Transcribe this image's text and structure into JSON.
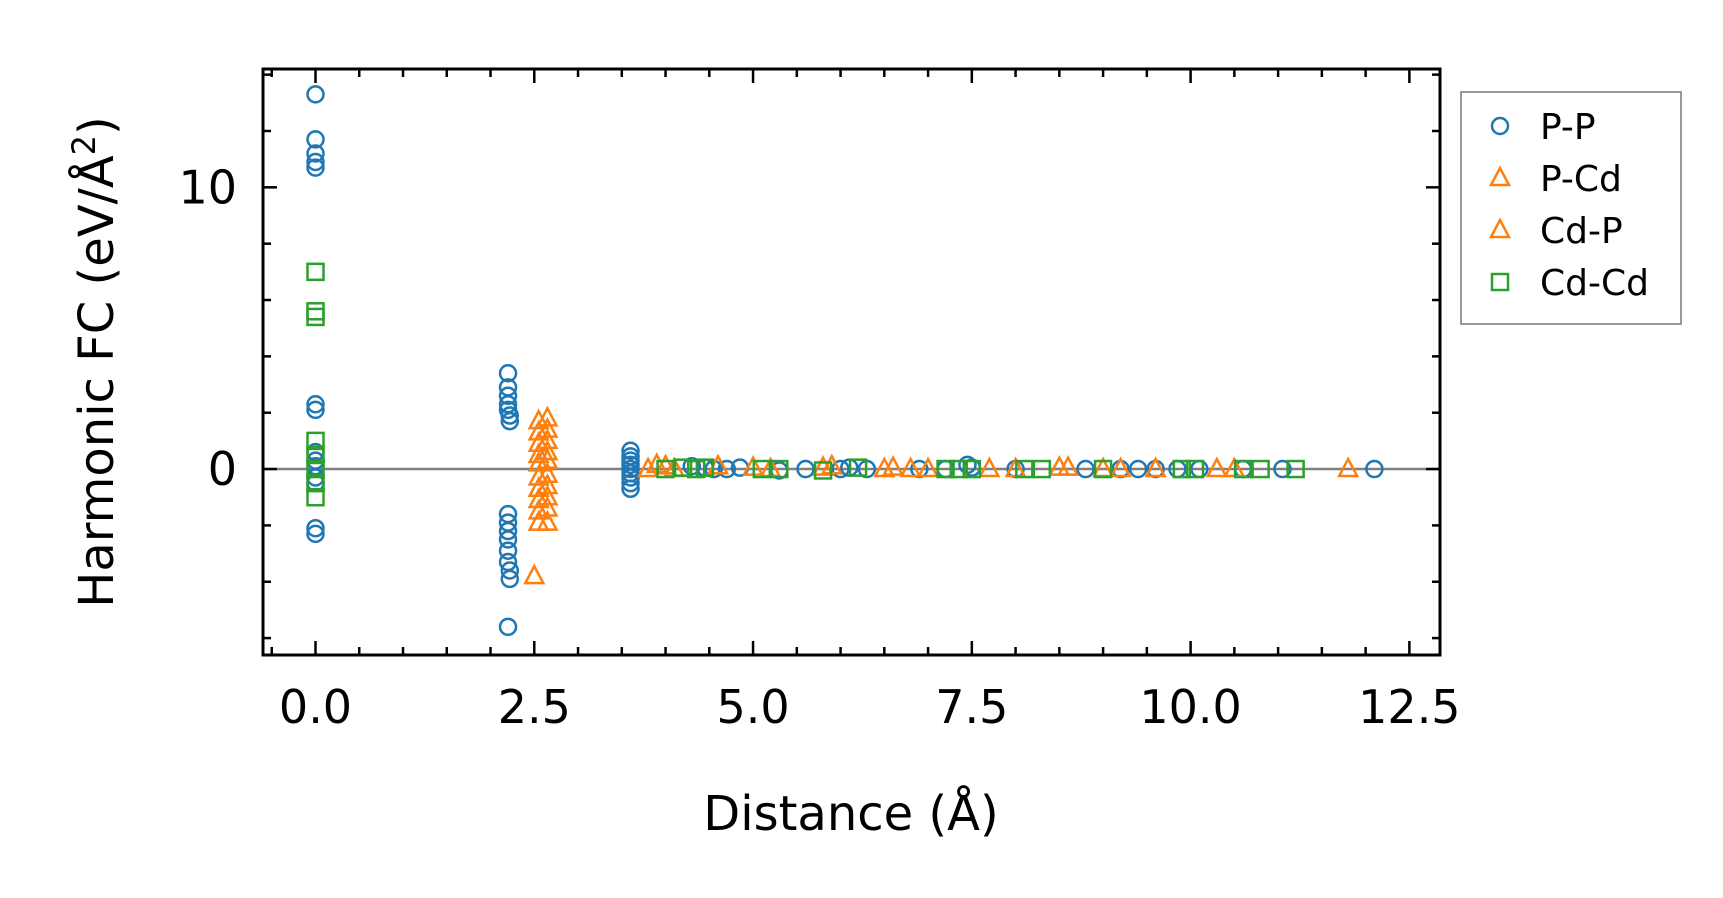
{
  "chart_data": {
    "type": "scatter",
    "title": "",
    "xlabel": "Distance (Å)",
    "ylabel": "Harmonic FC (eV/Å²)",
    "ylabel_parts": {
      "base": "Harmonic FC (eV/Å",
      "sup": "2",
      "close": ")"
    },
    "xlim": [
      -0.6,
      12.85
    ],
    "ylim": [
      -6.6,
      14.2
    ],
    "xticks": [
      0.0,
      2.5,
      5.0,
      7.5,
      10.0,
      12.5
    ],
    "xtick_labels": [
      "0.0",
      "2.5",
      "5.0",
      "7.5",
      "10.0",
      "12.5"
    ],
    "yticks": [
      0,
      10
    ],
    "ytick_labels": [
      "0",
      "10"
    ],
    "zero_line": true,
    "legend_position": "outside-right-top",
    "series": [
      {
        "name": "P-P",
        "marker": "circle",
        "color": "#1f77b4",
        "points": [
          [
            0,
            13.3
          ],
          [
            0,
            11.7
          ],
          [
            0,
            11.2
          ],
          [
            0,
            10.9
          ],
          [
            0,
            10.7
          ],
          [
            0,
            2.3
          ],
          [
            0,
            2.1
          ],
          [
            0,
            0.6
          ],
          [
            0,
            0.3
          ],
          [
            0,
            0.1
          ],
          [
            0,
            -0.3
          ],
          [
            0,
            -0.5
          ],
          [
            0,
            -2.1
          ],
          [
            0,
            -2.3
          ],
          [
            2.2,
            3.4
          ],
          [
            2.2,
            2.9
          ],
          [
            2.2,
            2.6
          ],
          [
            2.2,
            2.3
          ],
          [
            2.2,
            2.1
          ],
          [
            2.22,
            1.9
          ],
          [
            2.22,
            1.7
          ],
          [
            2.2,
            -1.6
          ],
          [
            2.2,
            -1.9
          ],
          [
            2.2,
            -2.2
          ],
          [
            2.2,
            -2.5
          ],
          [
            2.2,
            -2.9
          ],
          [
            2.2,
            -3.3
          ],
          [
            2.22,
            -3.6
          ],
          [
            2.22,
            -3.9
          ],
          [
            2.2,
            -5.6
          ],
          [
            3.6,
            0.65
          ],
          [
            3.6,
            0.45
          ],
          [
            3.6,
            0.3
          ],
          [
            3.6,
            0.15
          ],
          [
            3.6,
            0.0
          ],
          [
            3.6,
            -0.15
          ],
          [
            3.6,
            -0.3
          ],
          [
            3.6,
            -0.5
          ],
          [
            3.6,
            -0.7
          ],
          [
            4.3,
            0.1
          ],
          [
            4.45,
            0.05
          ],
          [
            4.55,
            0.0
          ],
          [
            4.7,
            0.0
          ],
          [
            4.85,
            0.05
          ],
          [
            5.3,
            -0.05
          ],
          [
            5.6,
            0.0
          ],
          [
            6.0,
            0.0
          ],
          [
            6.1,
            0.05
          ],
          [
            6.3,
            0.0
          ],
          [
            6.9,
            0.0
          ],
          [
            7.2,
            0.0
          ],
          [
            7.45,
            0.15
          ],
          [
            7.5,
            0.05
          ],
          [
            8.0,
            0.0
          ],
          [
            8.8,
            0.0
          ],
          [
            9.2,
            0.0
          ],
          [
            9.4,
            0.0
          ],
          [
            9.6,
            0.0
          ],
          [
            9.85,
            0.0
          ],
          [
            10.1,
            0.0
          ],
          [
            10.6,
            0.0
          ],
          [
            11.05,
            0.0
          ],
          [
            12.1,
            0.0
          ]
        ]
      },
      {
        "name": "P-Cd",
        "marker": "triangle",
        "color": "#ff7f0e",
        "points": [
          [
            2.55,
            1.7
          ],
          [
            2.55,
            1.3
          ],
          [
            2.55,
            0.9
          ],
          [
            2.55,
            0.5
          ],
          [
            2.55,
            0.2
          ],
          [
            2.55,
            -0.3
          ],
          [
            2.55,
            -0.7
          ],
          [
            2.55,
            -1.1
          ],
          [
            2.55,
            -1.5
          ],
          [
            2.55,
            -1.9
          ],
          [
            2.5,
            -3.8
          ],
          [
            4.0,
            0.1
          ],
          [
            5.0,
            0.05
          ],
          [
            5.8,
            0.05
          ],
          [
            6.5,
            0.0
          ],
          [
            7.0,
            0.0
          ],
          [
            8.0,
            0.0
          ],
          [
            8.6,
            0.05
          ],
          [
            9.0,
            0.0
          ],
          [
            9.6,
            0.0
          ],
          [
            10.3,
            0.0
          ],
          [
            11.8,
            0.0
          ]
        ]
      },
      {
        "name": "Cd-P",
        "marker": "triangle",
        "color": "#ff7f0e",
        "points": [
          [
            2.65,
            1.8
          ],
          [
            2.65,
            1.4
          ],
          [
            2.65,
            1.0
          ],
          [
            2.65,
            0.6
          ],
          [
            2.65,
            0.3
          ],
          [
            2.65,
            -0.2
          ],
          [
            2.65,
            -0.6
          ],
          [
            2.65,
            -1.0
          ],
          [
            2.65,
            -1.4
          ],
          [
            2.65,
            -1.9
          ],
          [
            3.8,
            0.0
          ],
          [
            3.9,
            0.15
          ],
          [
            4.1,
            0.0
          ],
          [
            4.6,
            0.1
          ],
          [
            5.2,
            0.0
          ],
          [
            5.9,
            0.1
          ],
          [
            6.6,
            0.05
          ],
          [
            6.8,
            0.0
          ],
          [
            7.7,
            0.0
          ],
          [
            8.5,
            0.05
          ],
          [
            9.2,
            0.0
          ],
          [
            10.5,
            0.0
          ]
        ]
      },
      {
        "name": "Cd-Cd",
        "marker": "square",
        "color": "#2ca02c",
        "points": [
          [
            0,
            7.0
          ],
          [
            0,
            5.6
          ],
          [
            0,
            5.4
          ],
          [
            0,
            1.0
          ],
          [
            0,
            0.5
          ],
          [
            0,
            0.0
          ],
          [
            0,
            -0.5
          ],
          [
            0,
            -1.0
          ],
          [
            4.0,
            0.0
          ],
          [
            4.2,
            0.05
          ],
          [
            4.35,
            0.0
          ],
          [
            4.45,
            0.05
          ],
          [
            5.1,
            0.0
          ],
          [
            5.3,
            0.0
          ],
          [
            5.8,
            -0.05
          ],
          [
            6.2,
            0.05
          ],
          [
            7.2,
            0.0
          ],
          [
            7.35,
            0.0
          ],
          [
            7.5,
            0.0
          ],
          [
            8.1,
            0.0
          ],
          [
            8.3,
            0.0
          ],
          [
            9.0,
            0.0
          ],
          [
            9.9,
            0.0
          ],
          [
            10.05,
            0.0
          ],
          [
            10.6,
            0.0
          ],
          [
            10.8,
            0.0
          ],
          [
            11.2,
            0.0
          ]
        ]
      }
    ]
  }
}
